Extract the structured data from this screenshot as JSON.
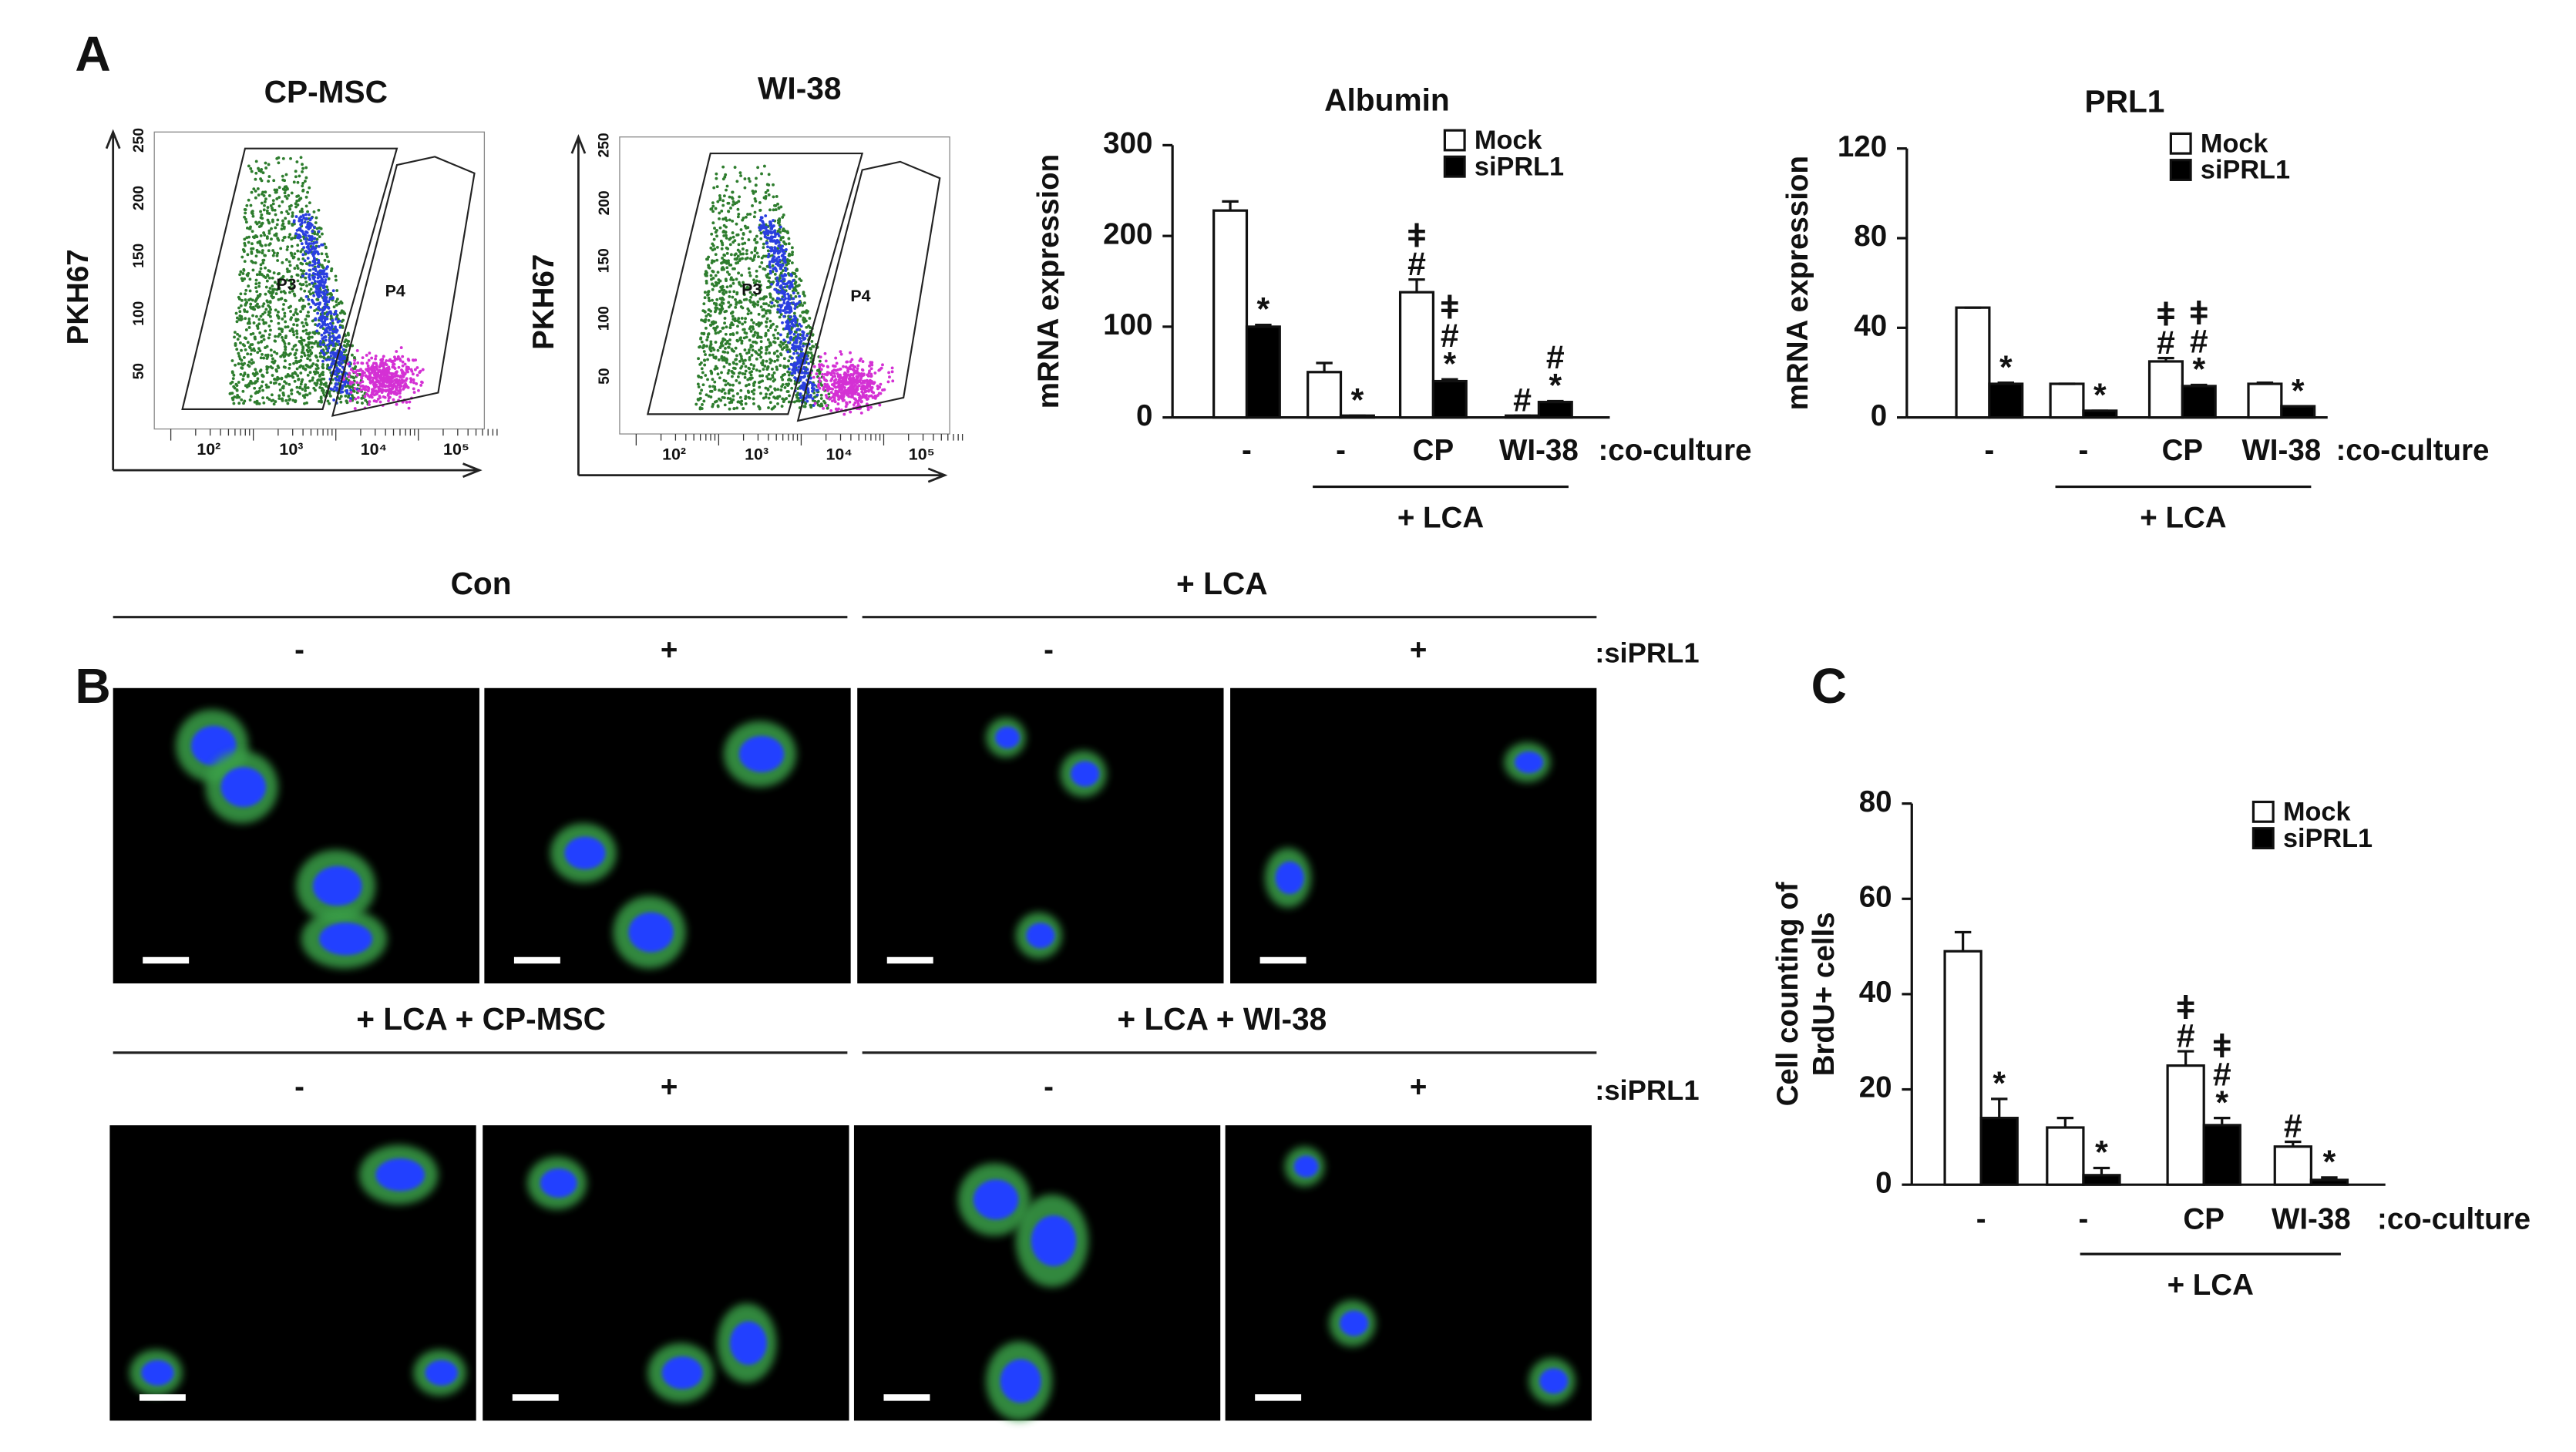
{
  "panel_labels": [
    "A",
    "B",
    "C"
  ],
  "flow": [
    {
      "title": "CP-MSC",
      "ylabel": "PKH67",
      "gates": [
        "P3",
        "P4"
      ],
      "xticks": [
        "10²",
        "10³",
        "10⁴",
        "10⁵"
      ],
      "yticks": [
        "50",
        "100",
        "150",
        "200",
        "250"
      ]
    },
    {
      "title": "WI-38",
      "ylabel": "PKH67",
      "gates": [
        "P3",
        "P4"
      ],
      "xticks": [
        "10²",
        "10³",
        "10⁴",
        "10⁵"
      ],
      "yticks": [
        "50",
        "100",
        "150",
        "200",
        "250"
      ]
    }
  ],
  "images": {
    "groups": [
      "Con",
      "+ LCA",
      "+ LCA + CP-MSC",
      "+ LCA + WI-38"
    ],
    "conditions": [
      "-",
      "+"
    ],
    "condition_label": ":siPRL1"
  },
  "chart_data": [
    {
      "type": "bar",
      "title": "Albumin",
      "ylabel": [
        "mRNA expression"
      ],
      "categories": [
        "-",
        "-",
        "CP",
        "WI-38"
      ],
      "x_label": ":co-culture",
      "group_label": "+ LCA",
      "ylim": [
        0,
        300
      ],
      "yticks": [
        0,
        100,
        200,
        300
      ],
      "series": [
        {
          "name": "Mock",
          "color": "#ffffff",
          "values": [
            228,
            50,
            138,
            2
          ],
          "errors": [
            10,
            10,
            14,
            0
          ],
          "markers": [
            [],
            [],
            [
              "#",
              "ǂ"
            ],
            [
              "#"
            ]
          ]
        },
        {
          "name": "siPRL1",
          "color": "#000000",
          "values": [
            100,
            2,
            40,
            17
          ],
          "errors": [
            2,
            0,
            2,
            1
          ],
          "markers": [
            [
              "*"
            ],
            [
              "*"
            ],
            [
              "*",
              "#",
              "ǂ"
            ],
            [
              "*",
              "#"
            ]
          ]
        }
      ]
    },
    {
      "type": "bar",
      "title": "PRL1",
      "ylabel": [
        "mRNA expression"
      ],
      "categories": [
        "-",
        "-",
        "CP",
        "WI-38"
      ],
      "x_label": ":co-culture",
      "group_label": "+ LCA",
      "ylim": [
        0,
        120
      ],
      "yticks": [
        0,
        40,
        80,
        120
      ],
      "series": [
        {
          "name": "Mock",
          "color": "#ffffff",
          "values": [
            49,
            15,
            25,
            15
          ],
          "errors": [
            0,
            0,
            1.5,
            0.5
          ],
          "markers": [
            [],
            [],
            [
              "#",
              "ǂ"
            ],
            []
          ]
        },
        {
          "name": "siPRL1",
          "color": "#000000",
          "values": [
            15,
            3,
            14,
            5
          ],
          "errors": [
            0.5,
            0,
            0.5,
            0
          ],
          "markers": [
            [
              "*"
            ],
            [
              "*"
            ],
            [
              "*",
              "#",
              "ǂ"
            ],
            [
              "*"
            ]
          ]
        }
      ]
    },
    {
      "type": "bar",
      "ylabel": [
        "Cell counting of",
        "BrdU+ cells"
      ],
      "categories": [
        "-",
        "-",
        "CP",
        "WI-38"
      ],
      "x_label": ":co-culture",
      "group_label": "+ LCA",
      "ylim": [
        0,
        80
      ],
      "yticks": [
        0,
        20,
        40,
        60,
        80
      ],
      "series": [
        {
          "name": "Mock",
          "color": "#ffffff",
          "values": [
            49,
            12,
            25,
            8
          ],
          "errors": [
            4,
            2,
            3,
            1
          ],
          "markers": [
            [],
            [],
            [
              "#",
              "ǂ"
            ],
            [
              "#"
            ]
          ]
        },
        {
          "name": "siPRL1",
          "color": "#000000",
          "values": [
            14,
            2,
            12.5,
            1
          ],
          "errors": [
            4,
            1.5,
            1.5,
            0.5
          ],
          "markers": [
            [
              "*"
            ],
            [
              "*"
            ],
            [
              "*",
              "#",
              "ǂ"
            ],
            [
              "*"
            ]
          ]
        }
      ]
    }
  ]
}
